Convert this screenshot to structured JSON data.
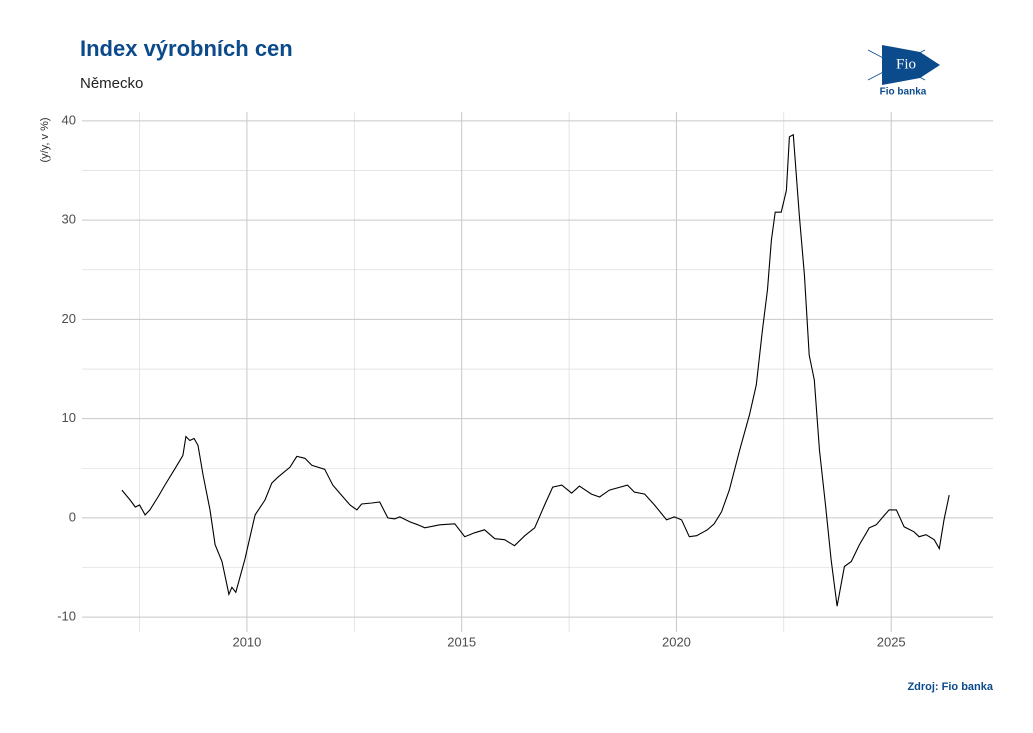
{
  "chart_data": {
    "type": "line",
    "title": "Index výrobních cen",
    "subtitle": "Německo",
    "y_label": "(y/y, v %)",
    "source": "Zdroj: Fio banka",
    "color": "#000000",
    "grid": true,
    "xlim": [
      2006.16,
      2027.37
    ],
    "xticks": [
      2010,
      2015,
      2020,
      2025
    ],
    "x_minor_ticks": [
      2007.5,
      2012.5,
      2017.5,
      2022.5
    ],
    "ylim": [
      -11.5,
      40.9
    ],
    "yticks": [
      -10,
      0,
      10,
      20,
      30,
      40
    ],
    "y_minor_ticks": [
      -5,
      5,
      15,
      25,
      35
    ],
    "x": [
      2007.09,
      2007.28,
      2007.4,
      2007.5,
      2007.63,
      2007.74,
      2007.93,
      2008.09,
      2008.33,
      2008.51,
      2008.58,
      2008.67,
      2008.77,
      2008.86,
      2008.98,
      2009.14,
      2009.26,
      2009.42,
      2009.58,
      2009.65,
      2009.74,
      2009.95,
      2010.19,
      2010.42,
      2010.58,
      2010.72,
      2011.0,
      2011.16,
      2011.35,
      2011.51,
      2011.81,
      2012.0,
      2012.16,
      2012.4,
      2012.56,
      2012.67,
      2012.91,
      2013.09,
      2013.28,
      2013.44,
      2013.56,
      2013.79,
      2013.98,
      2014.14,
      2014.49,
      2014.84,
      2015.07,
      2015.3,
      2015.53,
      2015.77,
      2016.0,
      2016.23,
      2016.47,
      2016.7,
      2016.93,
      2017.12,
      2017.33,
      2017.56,
      2017.74,
      2018.02,
      2018.21,
      2018.44,
      2018.86,
      2019.02,
      2019.26,
      2019.49,
      2019.77,
      2019.95,
      2020.12,
      2020.3,
      2020.47,
      2020.72,
      2020.88,
      2021.05,
      2021.23,
      2021.47,
      2021.7,
      2021.86,
      2022.0,
      2022.12,
      2022.21,
      2022.3,
      2022.44,
      2022.56,
      2022.63,
      2022.72,
      2022.86,
      2022.98,
      2023.09,
      2023.21,
      2023.33,
      2023.47,
      2023.6,
      2023.74,
      2023.91,
      2024.07,
      2024.26,
      2024.49,
      2024.65,
      2024.81,
      2024.95,
      2025.12,
      2025.3,
      2025.53,
      2025.65,
      2025.81,
      2026.0,
      2026.12,
      2026.23,
      2026.35
    ],
    "values": [
      2.8,
      1.8,
      1.1,
      1.3,
      0.3,
      0.8,
      2.1,
      3.3,
      5.0,
      6.3,
      8.2,
      7.8,
      8.0,
      7.3,
      4.3,
      0.8,
      -2.7,
      -4.4,
      -7.7,
      -7.0,
      -7.5,
      -4.2,
      0.3,
      1.8,
      3.5,
      4.1,
      5.1,
      6.2,
      6.0,
      5.3,
      4.9,
      3.3,
      2.5,
      1.3,
      0.8,
      1.4,
      1.5,
      1.6,
      0.0,
      -0.1,
      0.1,
      -0.4,
      -0.7,
      -1.0,
      -0.7,
      -0.6,
      -1.9,
      -1.5,
      -1.2,
      -2.1,
      -2.2,
      -2.8,
      -1.8,
      -1.0,
      1.3,
      3.1,
      3.3,
      2.5,
      3.2,
      2.4,
      2.1,
      2.8,
      3.3,
      2.6,
      2.4,
      1.3,
      -0.2,
      0.1,
      -0.2,
      -1.9,
      -1.8,
      -1.2,
      -0.6,
      0.6,
      2.8,
      6.8,
      10.4,
      13.4,
      18.9,
      23.0,
      28.0,
      30.8,
      30.8,
      33.0,
      38.4,
      38.6,
      30.5,
      24.5,
      16.4,
      13.9,
      6.8,
      1.3,
      -4.2,
      -8.9,
      -4.9,
      -4.4,
      -2.7,
      -1.0,
      -0.7,
      0.1,
      0.8,
      0.8,
      -0.9,
      -1.4,
      -1.9,
      -1.7,
      -2.2,
      -3.1,
      -0.2,
      2.3
    ]
  },
  "logo": {
    "text": "Fio",
    "caption": "Fio banka"
  }
}
